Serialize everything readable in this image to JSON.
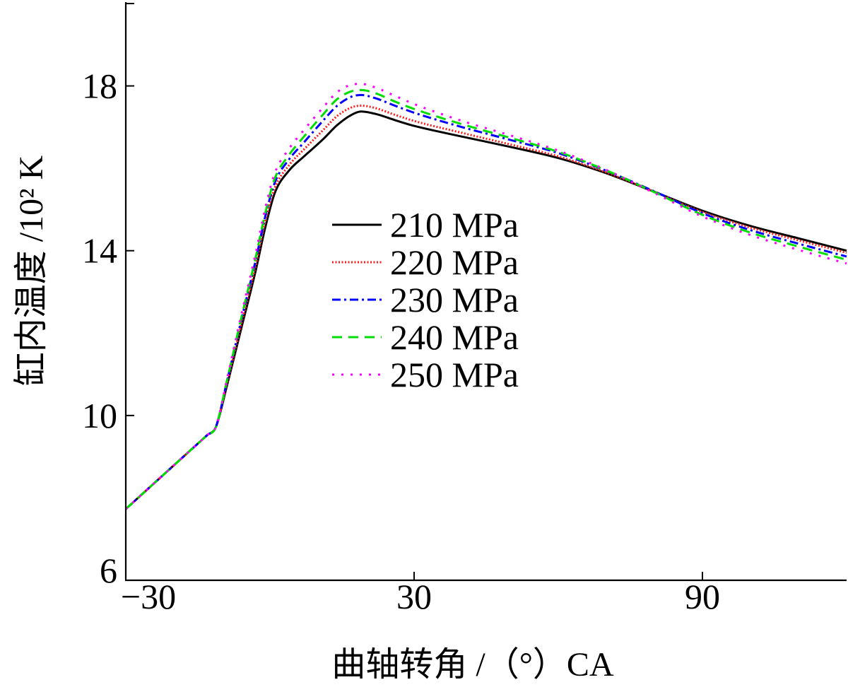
{
  "chart_data": {
    "type": "line",
    "xlabel": "曲轴转角 /（°）CA",
    "ylabel": "缸内温度 /10² K",
    "xlim": [
      -30,
      120
    ],
    "ylim": [
      6,
      20
    ],
    "xticks": [
      -30,
      30,
      90
    ],
    "xtick_labels": [
      "−30",
      "30",
      "90"
    ],
    "yticks": [
      6,
      10,
      14,
      18
    ],
    "ytick_labels": [
      "6",
      "10",
      "14",
      "18"
    ],
    "grid": false,
    "legend_position": "center",
    "x": [
      -30,
      -20,
      -13,
      -11.3,
      -9,
      -6,
      -3,
      -1,
      1,
      4,
      7,
      11,
      14,
      17,
      19,
      22,
      26,
      30,
      40,
      50,
      60,
      70,
      80,
      90,
      100,
      110,
      120
    ],
    "series": [
      {
        "name": "210 MPa",
        "color": "#000000",
        "values": [
          7.73,
          8.79,
          9.53,
          9.71,
          10.7,
          12.1,
          13.5,
          14.55,
          15.4,
          15.95,
          16.28,
          16.7,
          17.05,
          17.3,
          17.38,
          17.32,
          17.17,
          17.03,
          16.77,
          16.52,
          16.25,
          15.88,
          15.43,
          14.97,
          14.6,
          14.3,
          14.0
        ]
      },
      {
        "name": "220 MPa",
        "color": "#ff1a1a",
        "values": [
          7.73,
          8.79,
          9.53,
          9.71,
          10.75,
          12.2,
          13.62,
          14.7,
          15.52,
          16.08,
          16.45,
          16.92,
          17.27,
          17.48,
          17.52,
          17.46,
          17.3,
          17.15,
          16.86,
          16.58,
          16.29,
          15.9,
          15.43,
          14.94,
          14.56,
          14.25,
          13.95
        ]
      },
      {
        "name": "230 MPa",
        "color": "#0000ff",
        "values": [
          7.73,
          8.79,
          9.53,
          9.71,
          10.8,
          12.3,
          13.75,
          14.82,
          15.65,
          16.22,
          16.62,
          17.15,
          17.52,
          17.74,
          17.78,
          17.7,
          17.52,
          17.35,
          17.0,
          16.69,
          16.37,
          15.94,
          15.44,
          14.91,
          14.5,
          14.17,
          13.86
        ]
      },
      {
        "name": "240 MPa",
        "color": "#00dd00",
        "values": [
          7.73,
          8.79,
          9.53,
          9.71,
          10.82,
          12.35,
          13.82,
          14.9,
          15.75,
          16.33,
          16.76,
          17.3,
          17.68,
          17.87,
          17.9,
          17.82,
          17.62,
          17.44,
          17.07,
          16.74,
          16.4,
          15.95,
          15.42,
          14.87,
          14.44,
          14.1,
          13.78
        ]
      },
      {
        "name": "250 MPa",
        "color": "#ff00ff",
        "values": [
          7.73,
          8.79,
          9.53,
          9.71,
          10.85,
          12.42,
          13.92,
          15.02,
          15.88,
          16.48,
          16.92,
          17.47,
          17.85,
          18.03,
          18.05,
          17.96,
          17.76,
          17.56,
          17.15,
          16.8,
          16.43,
          15.96,
          15.4,
          14.83,
          14.38,
          14.02,
          13.69
        ]
      }
    ]
  }
}
